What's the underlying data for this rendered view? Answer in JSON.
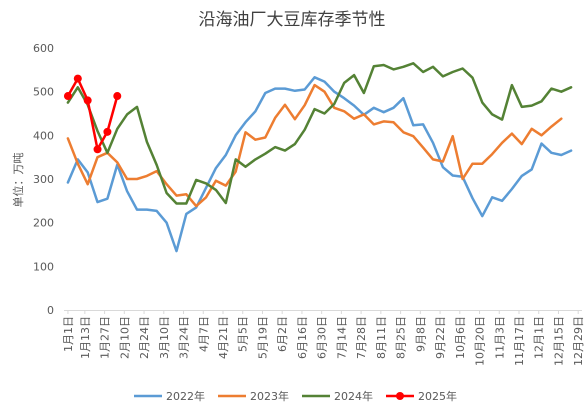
{
  "chart_data": {
    "type": "line",
    "title": "沿海油厂大豆库存季节性",
    "ylabel": "单位：万吨",
    "xlabel": "",
    "ylim": [
      0,
      600
    ],
    "yticks": [
      0,
      100,
      200,
      300,
      400,
      500,
      600
    ],
    "grid": false,
    "legend_position": "bottom",
    "x_tick_labels": [
      "1月1日",
      "1月13日",
      "1月27日",
      "2月10日",
      "2月24日",
      "3月10日",
      "3月24日",
      "4月7日",
      "4月21日",
      "5月5日",
      "5月19日",
      "6月2日",
      "6月16日",
      "6月30日",
      "7月14日",
      "7月28日",
      "8月11日",
      "8月25日",
      "9月8日",
      "9月22日",
      "10月6日",
      "10月20日",
      "11月3日",
      "11月17日",
      "12月1日",
      "12月15日",
      "12月29日"
    ],
    "x_tick_weeks": [
      0,
      1.714,
      3.714,
      5.714,
      7.714,
      9.714,
      11.714,
      13.714,
      15.714,
      17.714,
      19.714,
      21.714,
      23.714,
      25.714,
      27.714,
      29.714,
      31.714,
      33.714,
      35.714,
      37.714,
      39.714,
      41.714,
      43.714,
      45.714,
      47.714,
      49.714,
      51.714
    ],
    "x_week_range": [
      -0.4,
      52.1
    ],
    "series": [
      {
        "name": "2022年",
        "color": "#5b9bd5",
        "values": [
          292,
          345,
          315,
          247,
          255,
          333,
          272,
          230,
          230,
          227,
          200,
          135,
          220,
          235,
          280,
          325,
          355,
          400,
          430,
          455,
          497,
          507,
          507,
          502,
          505,
          533,
          523,
          500,
          485,
          468,
          447,
          463,
          453,
          463,
          485,
          423,
          425,
          383,
          327,
          308,
          305,
          256,
          215,
          258,
          250,
          277,
          307,
          322,
          381,
          360,
          355,
          365
        ]
      },
      {
        "name": "2023年",
        "color": "#ed7d31",
        "values": [
          393,
          335,
          288,
          350,
          360,
          338,
          300,
          300,
          307,
          318,
          288,
          262,
          265,
          238,
          258,
          296,
          285,
          317,
          407,
          390,
          395,
          440,
          470,
          437,
          469,
          515,
          500,
          463,
          455,
          438,
          448,
          425,
          432,
          430,
          407,
          398,
          372,
          345,
          340,
          398,
          300,
          335,
          335,
          357,
          383,
          404,
          380,
          415,
          400,
          420,
          438
        ]
      },
      {
        "name": "2024年",
        "color": "#548235",
        "values": [
          475,
          510,
          470,
          410,
          360,
          415,
          448,
          465,
          385,
          332,
          268,
          244,
          244,
          298,
          290,
          275,
          245,
          345,
          328,
          345,
          358,
          373,
          365,
          380,
          413,
          460,
          450,
          472,
          520,
          538,
          497,
          558,
          561,
          551,
          557,
          565,
          545,
          557,
          535,
          545,
          553,
          532,
          475,
          448,
          436,
          515,
          465,
          468,
          478,
          507,
          500,
          510
        ]
      },
      {
        "name": "2025年",
        "color": "#ff0000",
        "markers": true,
        "values": [
          490,
          530,
          480,
          368,
          408,
          490
        ]
      }
    ]
  }
}
